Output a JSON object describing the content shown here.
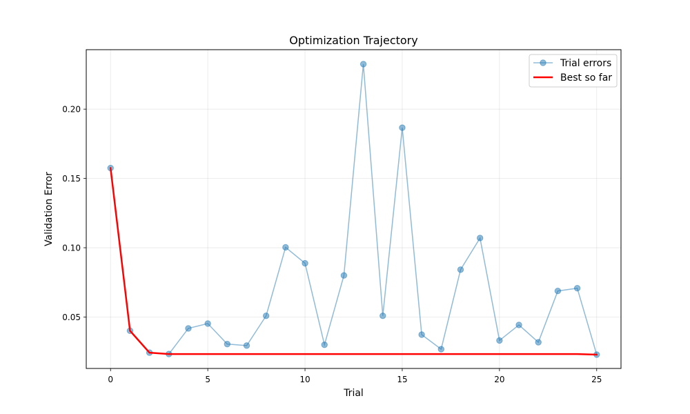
{
  "chart_data": {
    "type": "line",
    "title": "Optimization Trajectory",
    "xlabel": "Trial",
    "ylabel": "Validation Error",
    "xlim": [
      -1.25,
      26.25
    ],
    "ylim": [
      0.0129,
      0.2429
    ],
    "xticks": [
      0,
      5,
      10,
      15,
      20,
      25
    ],
    "xtick_labels": [
      "0",
      "5",
      "10",
      "15",
      "20",
      "25"
    ],
    "yticks": [
      0.05,
      0.1,
      0.15,
      0.2
    ],
    "ytick_labels": [
      "0.05",
      "0.10",
      "0.15",
      "0.20"
    ],
    "grid": true,
    "legend_position": "top-right",
    "series": [
      {
        "name": "Trial errors",
        "style": "line-with-markers",
        "color": "#1f77b4",
        "x": [
          0,
          1,
          2,
          3,
          4,
          5,
          6,
          7,
          8,
          9,
          10,
          11,
          12,
          13,
          14,
          15,
          16,
          17,
          18,
          19,
          20,
          21,
          22,
          23,
          24,
          25
        ],
        "values": [
          0.1575,
          0.0401,
          0.0243,
          0.0233,
          0.0418,
          0.0453,
          0.0305,
          0.0294,
          0.0509,
          0.1003,
          0.0888,
          0.03,
          0.08,
          0.2325,
          0.0509,
          0.1866,
          0.0373,
          0.0268,
          0.0842,
          0.107,
          0.0331,
          0.0443,
          0.0318,
          0.0688,
          0.0708,
          0.0229
        ]
      },
      {
        "name": "Best so far",
        "style": "line",
        "color": "#ff0000",
        "x": [
          0,
          1,
          2,
          3,
          4,
          5,
          6,
          7,
          8,
          9,
          10,
          11,
          12,
          13,
          14,
          15,
          16,
          17,
          18,
          19,
          20,
          21,
          22,
          23,
          24,
          25
        ],
        "values": [
          0.1575,
          0.0401,
          0.0243,
          0.0233,
          0.0233,
          0.0233,
          0.0233,
          0.0233,
          0.0233,
          0.0233,
          0.0233,
          0.0233,
          0.0233,
          0.0233,
          0.0233,
          0.0233,
          0.0233,
          0.0233,
          0.0233,
          0.0233,
          0.0233,
          0.0233,
          0.0233,
          0.0233,
          0.0233,
          0.0229
        ]
      }
    ]
  }
}
